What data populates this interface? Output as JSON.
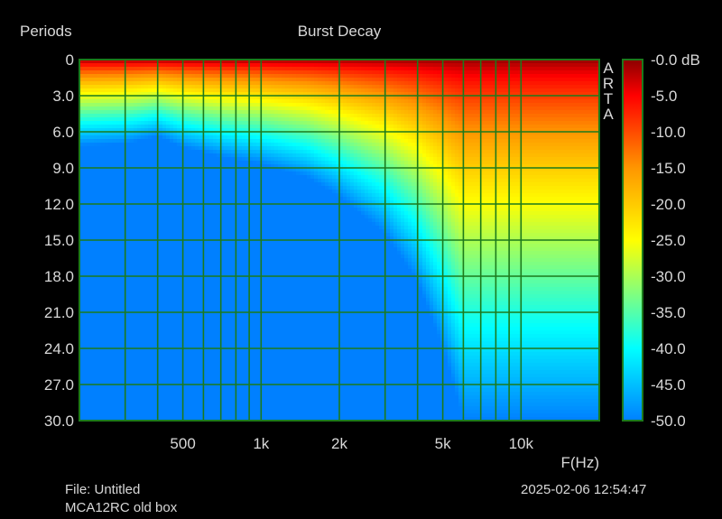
{
  "chart_data": {
    "type": "heatmap",
    "title": "Burst Decay",
    "xlabel": "F(Hz)",
    "ylabel": "Periods",
    "x_scale": "log",
    "xlim": [
      200,
      20000
    ],
    "ylim": [
      0,
      30
    ],
    "y_inverted": true,
    "x_ticks": [
      500,
      1000,
      2000,
      5000,
      10000
    ],
    "x_tick_labels": [
      "500",
      "1k",
      "2k",
      "5k",
      "10k"
    ],
    "y_ticks": [
      0,
      3,
      6,
      9,
      12,
      15,
      18,
      21,
      24,
      27,
      30
    ],
    "y_tick_labels": [
      "0",
      "3.0",
      "6.0",
      "9.0",
      "12.0",
      "15.0",
      "18.0",
      "21.0",
      "24.0",
      "27.0",
      "30.0"
    ],
    "grid": true,
    "colorbar": {
      "unit": "dB",
      "range": [
        -50,
        0
      ],
      "ticks": [
        0,
        -5,
        -10,
        -15,
        -20,
        -25,
        -30,
        -35,
        -40,
        -45,
        -50
      ],
      "tick_labels": [
        "-0.0 dB",
        "-5.0",
        "-10.0",
        "-15.0",
        "-20.0",
        "-25.0",
        "-30.0",
        "-35.0",
        "-40.0",
        "-45.0",
        "-50.0"
      ],
      "colors": [
        "#8b0000",
        "#ff0000",
        "#ffa500",
        "#ffff00",
        "#00ffff",
        "#0080ff"
      ]
    },
    "decay_envelope": {
      "frequency_hz": [
        200,
        300,
        400,
        500,
        700,
        1000,
        1500,
        2000,
        3000,
        4000,
        5000,
        6000,
        8000,
        10000,
        15000,
        20000
      ],
      "periods_to_minus50db": [
        7.2,
        7.0,
        6.4,
        7.3,
        8.1,
        8.7,
        9.8,
        11.4,
        14.5,
        18.5,
        24.0,
        30.0,
        30.0,
        30.0,
        30.0,
        30.0
      ]
    },
    "watermark": "ARTA"
  },
  "footer": {
    "file": "File: Untitled",
    "description": "MCA12RC old box",
    "datetime": "2025-02-06   12:54:47"
  }
}
